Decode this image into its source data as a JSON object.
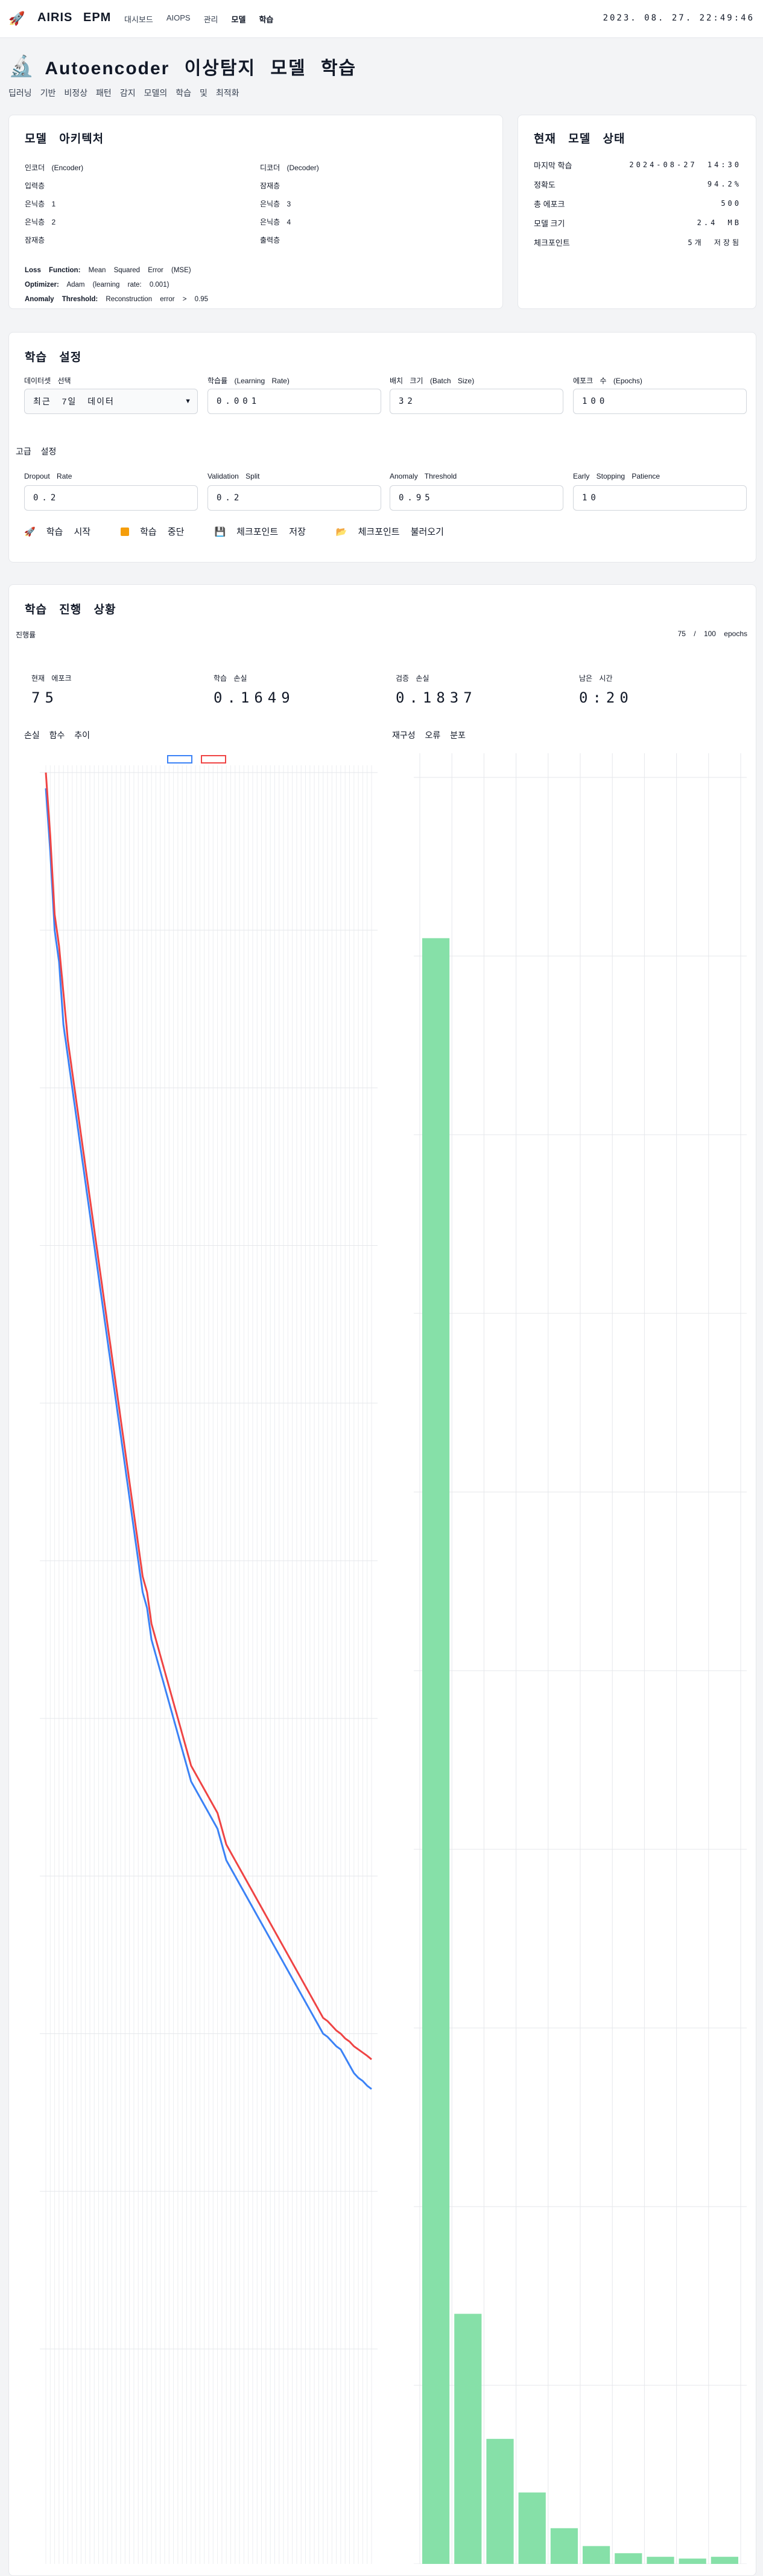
{
  "nav": {
    "logo_icon": "rocket-icon",
    "brand": "AIRIS",
    "brand2": "EPM",
    "menu": [
      "대시보드",
      "AIOPS",
      "관리",
      "모델",
      "학습"
    ],
    "clock": "2023. 08. 27. 22:49:46"
  },
  "page": {
    "title_icon": "microscope-icon",
    "title": "Autoencoder 이상탐지 모델 학습",
    "subnav": [
      "딥러닝",
      "기반",
      "비정상",
      "패턴",
      "감지",
      "모델의",
      "학습",
      "및",
      "최적화"
    ]
  },
  "architecture": {
    "title": "모델 아키텍처",
    "left": [
      "인코더 (Encoder)",
      "입력층",
      "은닉층 1",
      "은닉층 2",
      "잠재층"
    ],
    "right": [
      "디코더 (Decoder)",
      "잠재층",
      "은닉층 3",
      "은닉층 4",
      "출력층"
    ],
    "loss_label": "Loss Function:",
    "loss_value": "Mean Squared Error (MSE)",
    "optimizer_label": "Optimizer:",
    "optimizer_value": "Adam (learning rate: 0.001)",
    "anomaly_label": "Anomaly Threshold:",
    "anomaly_value": "Reconstruction error > 0.95"
  },
  "status": {
    "title": "현재 모델 상태",
    "rows": [
      {
        "k": "마지막 학습",
        "v": "2024-08-27 14:30"
      },
      {
        "k": "정확도",
        "v": "94.2%"
      },
      {
        "k": "총 에포크",
        "v": "500"
      },
      {
        "k": "모델 크기",
        "v": "2.4 MB"
      },
      {
        "k": "체크포인트",
        "v": "5개 저장됨"
      }
    ]
  },
  "config": {
    "title": "학습 설정",
    "dataset_label": "데이터셋 선택",
    "dataset_value": "최근 7일 데이터",
    "lr_label": "학습률 (Learning Rate)",
    "lr_value": "0.001",
    "batch_label": "배치 크기 (Batch Size)",
    "batch_value": "32",
    "epochs_label": "에포크 수 (Epochs)",
    "epochs_value": "100",
    "advanced_title": "고급 설정",
    "dropout_label": "Dropout Rate",
    "dropout_value": "0.2",
    "val_label": "Validation Split",
    "val_value": "0.2",
    "threshold_label": "Anomaly Threshold",
    "threshold_value": "0.95",
    "es_label": "Early Stopping Patience",
    "es_value": "10",
    "buttons": [
      {
        "icon": "rocket-icon",
        "label": "학습 시작"
      },
      {
        "icon": "stop-icon",
        "label": "학습 중단"
      },
      {
        "icon": "save-icon",
        "label": "체크포인트 저장"
      },
      {
        "icon": "folder-icon",
        "label": "체크포인트 불러오기"
      }
    ]
  },
  "progress": {
    "title": "학습 진행 상황",
    "label": "진행률",
    "value": "75 / 100 epochs",
    "stats": [
      {
        "k": "현재 에포크",
        "v": "75"
      },
      {
        "k": "학습 손실",
        "v": "0.1649"
      },
      {
        "k": "검증 손실",
        "v": "0.1837"
      },
      {
        "k": "남은 시간",
        "v": "0:20"
      }
    ],
    "loss_chart_title": "손실 함수 추이",
    "error_chart_title": "재구성 오류 분포"
  },
  "colors": {
    "train": "#3b82f6",
    "val": "#ef4444",
    "hist": "#86e0a8"
  },
  "chart_data": [
    {
      "type": "line",
      "x_range": [
        1,
        75
      ],
      "ylim": [
        0,
        1
      ],
      "series": [
        {
          "values": [
            0.99,
            0.95,
            0.9,
            0.88,
            0.84,
            0.82,
            0.8,
            0.78,
            0.76,
            0.74,
            0.72,
            0.7,
            0.68,
            0.66,
            0.64,
            0.62,
            0.6,
            0.58,
            0.56,
            0.54,
            0.52,
            0.5,
            0.48,
            0.47,
            0.45,
            0.44,
            0.43,
            0.42,
            0.41,
            0.4,
            0.39,
            0.38,
            0.37,
            0.36,
            0.355,
            0.35,
            0.345,
            0.34,
            0.335,
            0.33,
            0.32,
            0.31,
            0.305,
            0.3,
            0.295,
            0.29,
            0.285,
            0.28,
            0.275,
            0.27,
            0.265,
            0.26,
            0.255,
            0.25,
            0.245,
            0.24,
            0.235,
            0.23,
            0.225,
            0.22,
            0.215,
            0.21,
            0.205,
            0.2,
            0.198,
            0.195,
            0.192,
            0.19,
            0.185,
            0.18,
            0.175,
            0.172,
            0.17,
            0.167,
            0.1649
          ]
        },
        {
          "values": [
            1.0,
            0.96,
            0.91,
            0.89,
            0.86,
            0.83,
            0.81,
            0.79,
            0.77,
            0.75,
            0.73,
            0.71,
            0.69,
            0.67,
            0.65,
            0.63,
            0.61,
            0.59,
            0.57,
            0.55,
            0.53,
            0.51,
            0.49,
            0.48,
            0.46,
            0.45,
            0.44,
            0.43,
            0.42,
            0.41,
            0.4,
            0.39,
            0.38,
            0.37,
            0.365,
            0.36,
            0.355,
            0.35,
            0.345,
            0.34,
            0.33,
            0.32,
            0.315,
            0.31,
            0.305,
            0.3,
            0.295,
            0.29,
            0.285,
            0.28,
            0.275,
            0.27,
            0.265,
            0.26,
            0.255,
            0.25,
            0.245,
            0.24,
            0.235,
            0.23,
            0.225,
            0.22,
            0.215,
            0.21,
            0.208,
            0.205,
            0.202,
            0.2,
            0.197,
            0.195,
            0.192,
            0.19,
            0.188,
            0.186,
            0.1837
          ]
        }
      ]
    },
    {
      "type": "bar",
      "ylim": [
        0,
        100
      ],
      "values": [
        91,
        14,
        7,
        4,
        2,
        1,
        0.6,
        0.4,
        0.3,
        0.4
      ]
    }
  ]
}
